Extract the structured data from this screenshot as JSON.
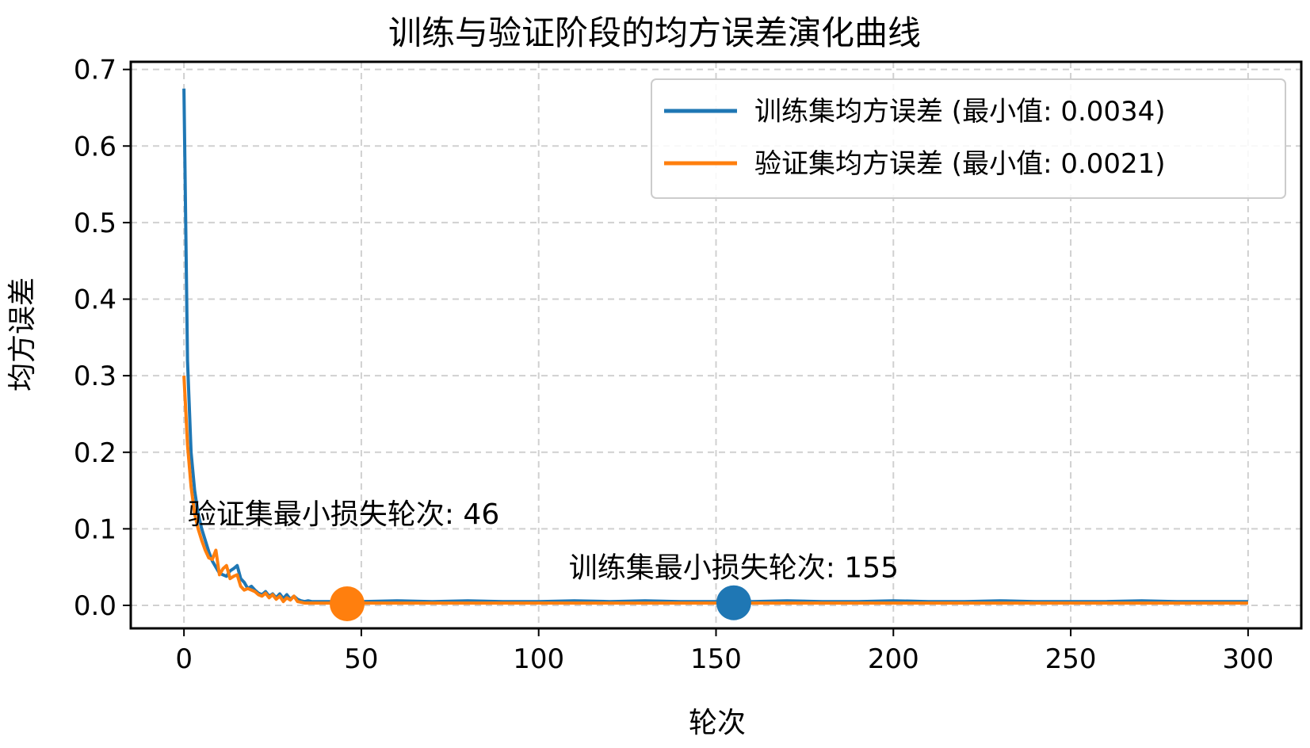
{
  "chart_data": {
    "type": "line",
    "title": "训练与验证阶段的均方误差演化曲线",
    "xlabel": "轮次",
    "ylabel": "均方误差",
    "xlim": [
      -15,
      315
    ],
    "ylim": [
      -0.03,
      0.71
    ],
    "xticks": [
      0,
      50,
      100,
      150,
      200,
      250,
      300
    ],
    "yticks": [
      0.0,
      0.1,
      0.2,
      0.3,
      0.4,
      0.5,
      0.6,
      0.7
    ],
    "xtick_labels": [
      "0",
      "50",
      "100",
      "150",
      "200",
      "250",
      "300"
    ],
    "ytick_labels": [
      "0.0",
      "0.1",
      "0.2",
      "0.3",
      "0.4",
      "0.5",
      "0.6",
      "0.7"
    ],
    "grid": true,
    "legend_position": "top-right",
    "series": [
      {
        "name": "训练集均方误差 (最小值: 0.0034)",
        "color": "#1f77b4",
        "x": [
          0,
          1,
          2,
          3,
          4,
          5,
          6,
          7,
          8,
          9,
          10,
          11,
          12,
          13,
          14,
          15,
          16,
          17,
          18,
          19,
          20,
          21,
          22,
          23,
          24,
          25,
          26,
          27,
          28,
          29,
          30,
          31,
          32,
          33,
          34,
          35,
          36,
          38,
          40,
          45,
          50,
          60,
          70,
          80,
          90,
          100,
          110,
          120,
          130,
          140,
          150,
          155,
          160,
          170,
          180,
          190,
          200,
          210,
          220,
          230,
          240,
          250,
          260,
          270,
          280,
          290,
          300
        ],
        "y": [
          0.675,
          0.32,
          0.2,
          0.15,
          0.12,
          0.1,
          0.085,
          0.07,
          0.058,
          0.05,
          0.042,
          0.04,
          0.038,
          0.045,
          0.048,
          0.052,
          0.035,
          0.03,
          0.022,
          0.025,
          0.02,
          0.016,
          0.014,
          0.018,
          0.012,
          0.015,
          0.01,
          0.015,
          0.009,
          0.014,
          0.008,
          0.012,
          0.008,
          0.006,
          0.005,
          0.006,
          0.005,
          0.005,
          0.005,
          0.005,
          0.005,
          0.006,
          0.005,
          0.006,
          0.005,
          0.005,
          0.006,
          0.005,
          0.006,
          0.005,
          0.005,
          0.0034,
          0.005,
          0.006,
          0.005,
          0.005,
          0.006,
          0.005,
          0.005,
          0.006,
          0.005,
          0.005,
          0.005,
          0.006,
          0.005,
          0.005,
          0.005
        ]
      },
      {
        "name": "验证集均方误差 (最小值: 0.0021)",
        "color": "#ff7f0e",
        "x": [
          0,
          1,
          2,
          3,
          4,
          5,
          6,
          7,
          8,
          9,
          10,
          11,
          12,
          13,
          14,
          15,
          16,
          17,
          18,
          19,
          20,
          21,
          22,
          23,
          24,
          25,
          26,
          27,
          28,
          29,
          30,
          31,
          32,
          33,
          34,
          35,
          36,
          38,
          40,
          42,
          44,
          46,
          50,
          60,
          70,
          80,
          90,
          100,
          110,
          120,
          130,
          140,
          150,
          160,
          170,
          180,
          190,
          200,
          210,
          220,
          230,
          240,
          250,
          260,
          270,
          280,
          290,
          300
        ],
        "y": [
          0.3,
          0.21,
          0.155,
          0.12,
          0.1,
          0.085,
          0.072,
          0.062,
          0.06,
          0.072,
          0.04,
          0.048,
          0.052,
          0.035,
          0.038,
          0.04,
          0.025,
          0.02,
          0.022,
          0.02,
          0.018,
          0.014,
          0.012,
          0.016,
          0.01,
          0.014,
          0.008,
          0.012,
          0.005,
          0.01,
          0.007,
          0.012,
          0.005,
          0.004,
          0.003,
          0.003,
          0.003,
          0.003,
          0.003,
          0.003,
          0.003,
          0.0021,
          0.003,
          0.003,
          0.003,
          0.003,
          0.003,
          0.003,
          0.003,
          0.003,
          0.003,
          0.003,
          0.003,
          0.003,
          0.003,
          0.003,
          0.003,
          0.003,
          0.003,
          0.003,
          0.003,
          0.003,
          0.003,
          0.003,
          0.003,
          0.003,
          0.003,
          0.003
        ]
      }
    ],
    "markers": [
      {
        "x": 46,
        "y": 0.0021,
        "color": "#ff7f0e",
        "series": "validation"
      },
      {
        "x": 155,
        "y": 0.0034,
        "color": "#1f77b4",
        "series": "train"
      }
    ],
    "annotations": [
      {
        "text": "验证集最小损失轮次: 46",
        "x": 45,
        "y": 0.12
      },
      {
        "text": "训练集最小损失轮次: 155",
        "x": 155,
        "y": 0.05
      }
    ],
    "grid_color": "#d0d0d0"
  }
}
